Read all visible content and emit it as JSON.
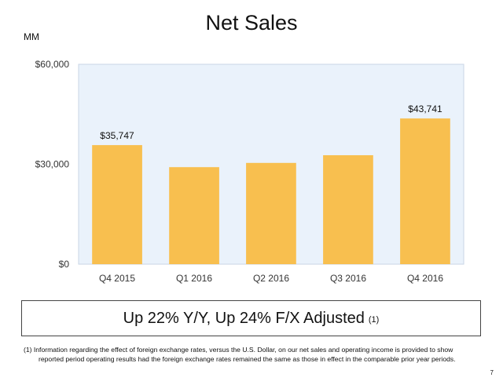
{
  "header": {
    "title": "Net Sales",
    "unit": "MM"
  },
  "chart_data": {
    "type": "bar",
    "title": "Net Sales",
    "xlabel": "",
    "ylabel": "MM",
    "categories": [
      "Q4 2015",
      "Q1 2016",
      "Q2 2016",
      "Q3 2016",
      "Q4 2016"
    ],
    "values": [
      35747,
      29128,
      30404,
      32714,
      43741
    ],
    "data_labels": [
      "$35,747",
      "",
      "",
      "",
      "$43,741"
    ],
    "ylim": [
      0,
      60000
    ],
    "yticks": [
      0,
      30000,
      60000
    ],
    "ytick_labels": [
      "$0",
      "$30,000",
      "$60,000"
    ],
    "grid": false,
    "legend": "none",
    "colors": {
      "bar": "#F8BF4F",
      "plot_bg": "#EAF2FB",
      "axis": "#C9D6E6"
    }
  },
  "summary": {
    "text": "Up 22% Y/Y, Up 24% F/X Adjusted",
    "note": "(1)"
  },
  "footnote": {
    "line1": "(1) Information regarding the effect of foreign exchange rates, versus the U.S. Dollar, on our net sales and operating income is provided to show",
    "line2": "reported period operating results had the foreign exchange rates remained the same as those in effect in the comparable prior year periods."
  },
  "page_number": "7"
}
